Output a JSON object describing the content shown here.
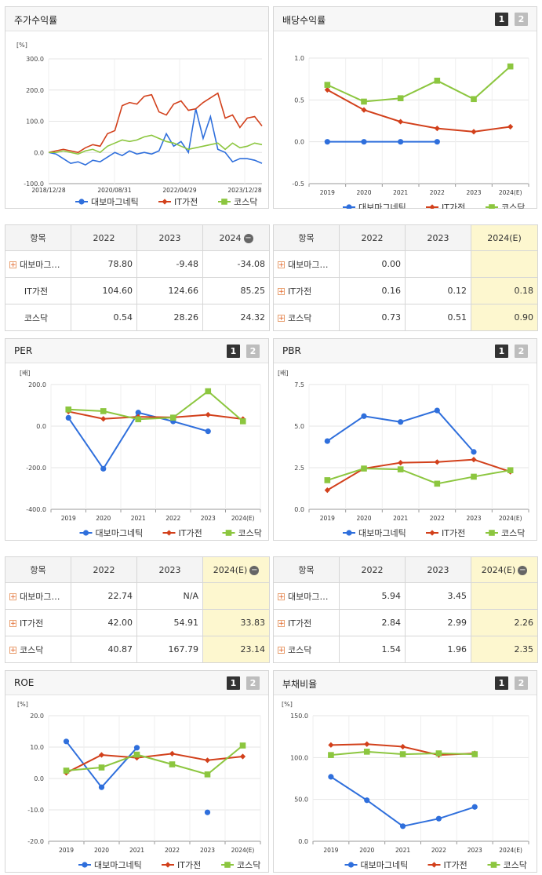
{
  "legend": [
    "대보마그네틱",
    "IT가전",
    "코스닥"
  ],
  "colors": {
    "s0": "#2f6fdc",
    "s1": "#d2401b",
    "s2": "#8cc63f"
  },
  "buttons": {
    "b1": "1",
    "b2": "2"
  },
  "stock": {
    "title": "주가수익률",
    "unit": "[%]",
    "chart_data": {
      "type": "line",
      "title": "주가수익률",
      "ylabel": "[%]",
      "x_ticks": [
        "2018/12/28",
        "2020/08/31",
        "2022/04/29",
        "2023/12/28"
      ],
      "y_ticks": [
        "300.0",
        "200.0",
        "100.0",
        "0.0",
        "-100.0"
      ],
      "ylim": [
        -100,
        300
      ],
      "x_range": [
        "2018/12/28",
        "2024/03"
      ],
      "series": [
        {
          "name": "대보마그네틱",
          "values": [
            0,
            -5,
            -20,
            -35,
            -30,
            -40,
            -25,
            -30,
            -15,
            0,
            -10,
            5,
            -5,
            0,
            -5,
            5,
            60,
            20,
            35,
            0,
            140,
            45,
            115,
            10,
            0,
            -30,
            -20,
            -20,
            -25,
            -35
          ]
        },
        {
          "name": "IT가전",
          "values": [
            0,
            5,
            10,
            5,
            0,
            15,
            25,
            20,
            60,
            70,
            150,
            160,
            155,
            180,
            185,
            130,
            120,
            155,
            165,
            135,
            140,
            160,
            175,
            190,
            110,
            120,
            80,
            110,
            115,
            85
          ]
        },
        {
          "name": "코스닥",
          "values": [
            0,
            0,
            5,
            0,
            -5,
            5,
            10,
            0,
            20,
            30,
            40,
            35,
            40,
            50,
            55,
            45,
            35,
            30,
            20,
            10,
            15,
            20,
            25,
            30,
            10,
            30,
            15,
            20,
            30,
            25
          ]
        }
      ]
    },
    "table": {
      "cols": [
        "항목",
        "2022",
        "2023",
        "2024"
      ],
      "rows": [
        {
          "name": "대보마그…",
          "plus": true,
          "vals": [
            "78.80",
            "-9.48",
            "-34.08"
          ]
        },
        {
          "name": "IT가전",
          "plus": false,
          "vals": [
            "104.60",
            "124.66",
            "85.25"
          ]
        },
        {
          "name": "코스닥",
          "plus": false,
          "vals": [
            "0.54",
            "28.26",
            "24.32"
          ]
        }
      ]
    }
  },
  "dividend": {
    "title": "배당수익률",
    "chart_data": {
      "type": "line",
      "title": "배당수익률",
      "categories": [
        "2019",
        "2020",
        "2021",
        "2022",
        "2023",
        "2024(E)"
      ],
      "y_ticks": [
        "1.0",
        "0.5",
        "0.0",
        "-0.5"
      ],
      "ylim": [
        -0.5,
        1.0
      ],
      "series": [
        {
          "name": "대보마그네틱",
          "values": [
            0.0,
            0.0,
            0.0,
            0.0,
            null,
            null
          ]
        },
        {
          "name": "IT가전",
          "values": [
            0.62,
            0.38,
            0.24,
            0.16,
            0.12,
            0.18
          ]
        },
        {
          "name": "코스닥",
          "values": [
            0.68,
            0.48,
            0.52,
            0.73,
            0.51,
            0.9
          ]
        }
      ]
    },
    "table": {
      "cols": [
        "항목",
        "2022",
        "2023",
        "2024(E)"
      ],
      "rows": [
        {
          "name": "대보마그…",
          "plus": true,
          "vals": [
            "0.00",
            "",
            ""
          ]
        },
        {
          "name": "IT가전",
          "plus": true,
          "vals": [
            "0.16",
            "0.12",
            "0.18"
          ]
        },
        {
          "name": "코스닥",
          "plus": true,
          "vals": [
            "0.73",
            "0.51",
            "0.90"
          ]
        }
      ]
    }
  },
  "per": {
    "title": "PER",
    "unit": "[배]",
    "chart_data": {
      "type": "line",
      "title": "PER",
      "ylabel": "[배]",
      "categories": [
        "2019",
        "2020",
        "2021",
        "2022",
        "2023",
        "2024(E)"
      ],
      "y_ticks": [
        "200.0",
        "0.0",
        "-200.0",
        "-400.0"
      ],
      "ylim": [
        -400,
        200
      ],
      "series": [
        {
          "name": "대보마그네틱",
          "values": [
            40,
            -205,
            65,
            22.74,
            -25,
            null
          ]
        },
        {
          "name": "IT가전",
          "values": [
            70,
            35,
            45,
            42.0,
            54.91,
            33.83
          ]
        },
        {
          "name": "코스닥",
          "values": [
            80,
            72,
            33,
            40.87,
            167.79,
            23.14
          ]
        }
      ]
    },
    "table": {
      "cols": [
        "항목",
        "2022",
        "2023",
        "2024(E)"
      ],
      "rows": [
        {
          "name": "대보마그…",
          "plus": true,
          "vals": [
            "22.74",
            "N/A",
            ""
          ]
        },
        {
          "name": "IT가전",
          "plus": true,
          "vals": [
            "42.00",
            "54.91",
            "33.83"
          ]
        },
        {
          "name": "코스닥",
          "plus": true,
          "vals": [
            "40.87",
            "167.79",
            "23.14"
          ]
        }
      ]
    }
  },
  "pbr": {
    "title": "PBR",
    "unit": "[배]",
    "chart_data": {
      "type": "line",
      "title": "PBR",
      "ylabel": "[배]",
      "categories": [
        "2019",
        "2020",
        "2021",
        "2022",
        "2023",
        "2024(E)"
      ],
      "y_ticks": [
        "7.5",
        "5.0",
        "2.5",
        "0.0"
      ],
      "ylim": [
        0,
        7.5
      ],
      "series": [
        {
          "name": "대보마그네틱",
          "values": [
            4.1,
            5.6,
            5.25,
            5.94,
            3.45,
            null
          ]
        },
        {
          "name": "IT가전",
          "values": [
            1.15,
            2.45,
            2.8,
            2.84,
            2.99,
            2.26
          ]
        },
        {
          "name": "코스닥",
          "values": [
            1.75,
            2.45,
            2.4,
            1.54,
            1.96,
            2.35
          ]
        }
      ]
    },
    "table": {
      "cols": [
        "항목",
        "2022",
        "2023",
        "2024(E)"
      ],
      "rows": [
        {
          "name": "대보마그…",
          "plus": true,
          "vals": [
            "5.94",
            "3.45",
            ""
          ]
        },
        {
          "name": "IT가전",
          "plus": true,
          "vals": [
            "2.84",
            "2.99",
            "2.26"
          ]
        },
        {
          "name": "코스닥",
          "plus": true,
          "vals": [
            "1.54",
            "1.96",
            "2.35"
          ]
        }
      ]
    }
  },
  "roe": {
    "title": "ROE",
    "unit": "[%]",
    "chart_data": {
      "type": "line",
      "title": "ROE",
      "ylabel": "[%]",
      "categories": [
        "2019",
        "2020",
        "2021",
        "2022",
        "2023",
        "2024(E)"
      ],
      "y_ticks": [
        "20.0",
        "10.0",
        "0.0",
        "-10.0",
        "-20.0"
      ],
      "ylim": [
        -20,
        20
      ],
      "series": [
        {
          "name": "대보마그네틱",
          "values": [
            11.8,
            -2.8,
            9.8,
            null,
            -10.8,
            null
          ]
        },
        {
          "name": "IT가전",
          "values": [
            1.8,
            7.5,
            6.6,
            7.9,
            5.8,
            7.0
          ]
        },
        {
          "name": "코스닥",
          "values": [
            2.5,
            3.5,
            7.6,
            4.5,
            1.3,
            10.5
          ]
        }
      ]
    }
  },
  "debt": {
    "title": "부채비율",
    "unit": "[%]",
    "chart_data": {
      "type": "line",
      "title": "부채비율",
      "ylabel": "[%]",
      "categories": [
        "2019",
        "2020",
        "2021",
        "2022",
        "2023",
        "2024(E)"
      ],
      "y_ticks": [
        "150.0",
        "100.0",
        "50.0",
        "0.0"
      ],
      "ylim": [
        0,
        150
      ],
      "series": [
        {
          "name": "대보마그네틱",
          "values": [
            77,
            49,
            18,
            27,
            41,
            null
          ]
        },
        {
          "name": "IT가전",
          "values": [
            115,
            116,
            113,
            103,
            105,
            null
          ]
        },
        {
          "name": "코스닥",
          "values": [
            103,
            107,
            104,
            105,
            104,
            null
          ]
        }
      ]
    }
  }
}
